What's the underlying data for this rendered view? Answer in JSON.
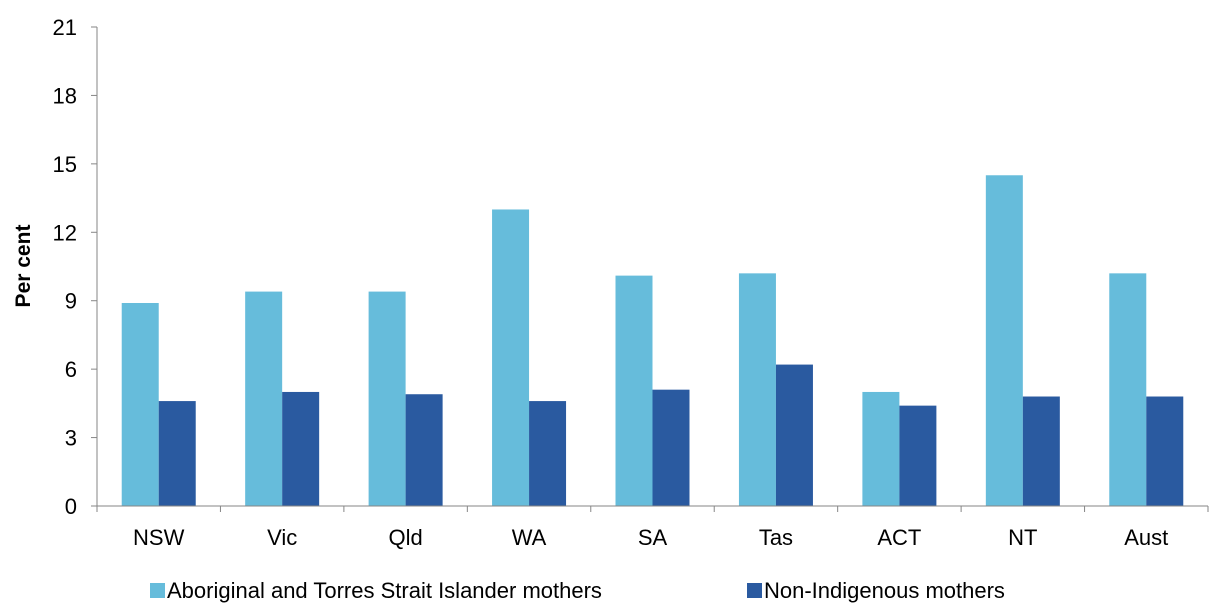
{
  "chart_data": {
    "type": "bar",
    "title": "",
    "xlabel": "",
    "ylabel": "Per cent",
    "ylim": [
      0,
      21
    ],
    "yticks": [
      0,
      3,
      6,
      9,
      12,
      15,
      18,
      21
    ],
    "categories": [
      "NSW",
      "Vic",
      "Qld",
      "WA",
      "SA",
      "Tas",
      "ACT",
      "NT",
      "Aust"
    ],
    "series": [
      {
        "name": "Aboriginal and Torres Strait Islander mothers",
        "color": "#66bcdb",
        "values": [
          8.9,
          9.4,
          9.4,
          13.0,
          10.1,
          10.2,
          5.0,
          14.5,
          10.2
        ]
      },
      {
        "name": "Non-Indigenous mothers",
        "color": "#2a5aa0",
        "values": [
          4.6,
          5.0,
          4.9,
          4.6,
          5.1,
          6.2,
          4.4,
          4.8,
          4.8
        ]
      }
    ],
    "grid": false,
    "legend_position": "bottom"
  }
}
